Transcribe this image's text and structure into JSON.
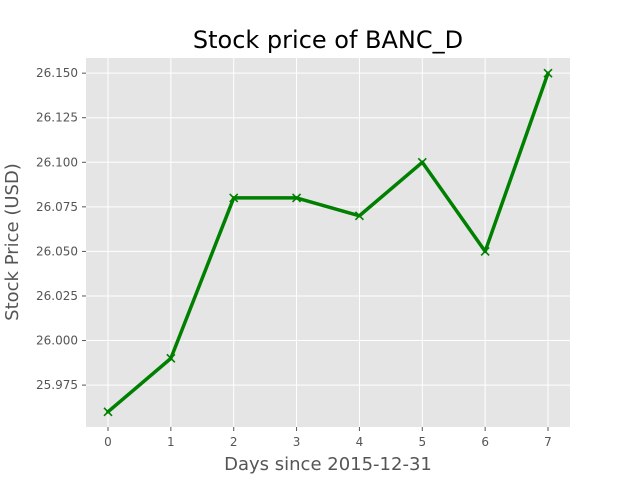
{
  "chart_data": {
    "type": "line",
    "title": "Stock price of BANC_D",
    "xlabel": "Days since 2015-12-31",
    "ylabel": "Stock Price (USD)",
    "x": [
      0,
      1,
      2,
      3,
      4,
      5,
      6,
      7
    ],
    "series": [
      {
        "values": [
          25.96,
          25.99,
          26.08,
          26.08,
          26.07,
          26.1,
          26.05,
          26.15
        ],
        "color": "#008000",
        "marker": "x"
      }
    ],
    "xticks": [
      "0",
      "1",
      "2",
      "3",
      "4",
      "5",
      "6",
      "7"
    ],
    "yticks": [
      "25.975",
      "26.000",
      "26.025",
      "26.050",
      "26.075",
      "26.100",
      "26.125",
      "26.150"
    ],
    "xlim": [
      -0.35,
      7.35
    ],
    "ylim": [
      25.9515,
      26.1585
    ],
    "grid": true,
    "background": "#e5e5e5"
  }
}
